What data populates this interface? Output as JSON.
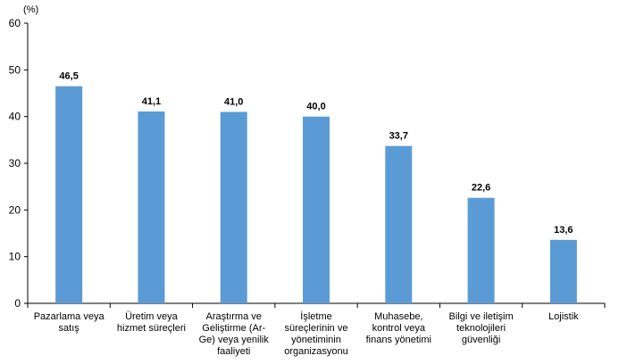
{
  "chart_data": {
    "type": "bar",
    "unit_label": "(%)",
    "categories": [
      [
        "Pazarlama veya",
        "satış"
      ],
      [
        "Üretim veya",
        "hizmet süreçleri"
      ],
      [
        "Araştırma ve",
        "Geliştirme (Ar-",
        "Ge) veya yenilik",
        "faaliyeti"
      ],
      [
        "İşletme",
        "süreçlerinin ve",
        "yönetiminin",
        "organizasyonu"
      ],
      [
        "Muhasebe,",
        "kontrol veya",
        "finans yönetimi"
      ],
      [
        "Bilgi ve iletişim",
        "teknolojileri",
        "güvenliği"
      ],
      [
        "Lojistik"
      ]
    ],
    "values": [
      46.5,
      41.1,
      41.0,
      40.0,
      33.7,
      22.6,
      13.6
    ],
    "data_labels": [
      "46,5",
      "41,1",
      "41,0",
      "40,0",
      "33,7",
      "22,6",
      "13,6"
    ],
    "yticks": [
      0,
      10,
      20,
      30,
      40,
      50,
      60
    ],
    "ylim": [
      0,
      60
    ],
    "grid": false,
    "bar_color": "#5b9bd5"
  }
}
